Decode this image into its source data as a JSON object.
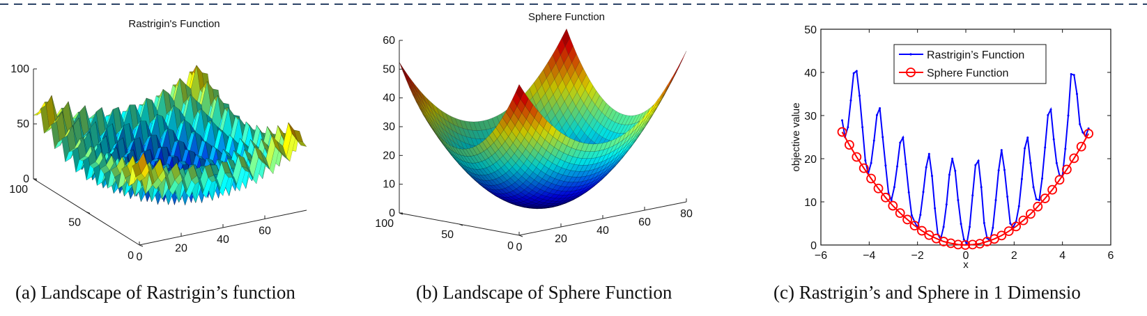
{
  "figure": {
    "captions": [
      "(a) Landscape of Rastrigin’s function",
      "(b) Landscape of Sphere Function",
      "(c) Rastrigin’s and Sphere in 1 Dimensio"
    ]
  },
  "chart_data": [
    {
      "type": "surface3d",
      "title": "Rastrigin's Function",
      "function": "rastrigin",
      "x_ticks": [
        "0",
        "20",
        "40",
        "60"
      ],
      "y_ticks": [
        "0",
        "50",
        "100"
      ],
      "z_ticks": [
        "0",
        "50",
        "100"
      ],
      "xlim": [
        0,
        80
      ],
      "ylim": [
        0,
        100
      ],
      "zlim": [
        0,
        100
      ],
      "grid": false
    },
    {
      "type": "surface3d",
      "title": "Sphere Function",
      "function": "sphere",
      "x_ticks": [
        "0",
        "20",
        "40",
        "60",
        "80"
      ],
      "y_ticks": [
        "0",
        "50",
        "100"
      ],
      "z_ticks": [
        "0",
        "10",
        "20",
        "30",
        "40",
        "50",
        "60"
      ],
      "xlim": [
        0,
        80
      ],
      "ylim": [
        0,
        100
      ],
      "zlim": [
        0,
        60
      ],
      "grid": false
    },
    {
      "type": "line",
      "title": "",
      "xlabel": "x",
      "ylabel": "objective value",
      "xlim": [
        -6,
        6
      ],
      "ylim": [
        0,
        50
      ],
      "x_ticks": [
        "−6",
        "−4",
        "−2",
        "0",
        "2",
        "4",
        "6"
      ],
      "y_ticks": [
        "0",
        "10",
        "20",
        "30",
        "40",
        "50"
      ],
      "legend_position": "top-center",
      "grid": false,
      "series": [
        {
          "name": "Rastrigin’s Function",
          "color": "#0000ff",
          "marker": "dot",
          "x": [
            -5.12,
            -5.0,
            -4.88,
            -4.76,
            -4.64,
            -4.52,
            -4.4,
            -4.28,
            -4.16,
            -4.04,
            -3.92,
            -3.8,
            -3.68,
            -3.56,
            -3.44,
            -3.32,
            -3.2,
            -3.08,
            -2.96,
            -2.84,
            -2.72,
            -2.6,
            -2.48,
            -2.36,
            -2.24,
            -2.12,
            -2.0,
            -1.88,
            -1.76,
            -1.64,
            -1.52,
            -1.4,
            -1.28,
            -1.16,
            -1.04,
            -0.92,
            -0.8,
            -0.68,
            -0.56,
            -0.44,
            -0.32,
            -0.2,
            -0.08,
            0.04,
            0.16,
            0.28,
            0.4,
            0.52,
            0.64,
            0.76,
            0.88,
            1.0,
            1.12,
            1.24,
            1.36,
            1.48,
            1.6,
            1.72,
            1.84,
            1.96,
            2.08,
            2.2,
            2.32,
            2.44,
            2.56,
            2.68,
            2.8,
            2.92,
            3.04,
            3.16,
            3.28,
            3.4,
            3.52,
            3.64,
            3.76,
            3.88,
            4.0,
            4.12,
            4.24,
            4.36,
            4.48,
            4.6,
            4.72,
            4.84,
            4.96,
            5.08
          ],
          "y": [
            28.9,
            25.0,
            27.3,
            33.5,
            39.8,
            40.3,
            34.6,
            27.3,
            19.6,
            16.5,
            19.0,
            24.2,
            30.1,
            31.7,
            25.0,
            18.4,
            12.0,
            10.4,
            13.4,
            18.2,
            23.7,
            24.9,
            18.7,
            12.2,
            6.9,
            5.4,
            4.0,
            7.0,
            12.3,
            18.0,
            21.1,
            16.0,
            8.5,
            2.5,
            1.3,
            4.2,
            9.4,
            16.3,
            20.0,
            17.2,
            10.4,
            4.9,
            1.3,
            0.3,
            4.2,
            11.5,
            18.5,
            19.5,
            13.4,
            5.1,
            1.6,
            1.0,
            4.0,
            10.4,
            17.3,
            22.0,
            17.4,
            11.2,
            5.0,
            4.1,
            5.4,
            9.0,
            15.3,
            22.4,
            24.9,
            19.0,
            13.4,
            10.6,
            10.4,
            15.4,
            22.6,
            30.1,
            31.4,
            24.5,
            19.0,
            16.1,
            16.0,
            22.3,
            30.0,
            39.6,
            39.4,
            35.0,
            28.0,
            26.1,
            25.2,
            27.0
          ]
        },
        {
          "name": "Sphere Function",
          "color": "#ff0000",
          "marker": "circle",
          "x": [
            -5.12,
            -4.82,
            -4.52,
            -4.22,
            -3.92,
            -3.62,
            -3.32,
            -3.02,
            -2.72,
            -2.42,
            -2.12,
            -1.82,
            -1.52,
            -1.22,
            -0.92,
            -0.62,
            -0.32,
            -0.02,
            0.28,
            0.58,
            0.88,
            1.18,
            1.48,
            1.78,
            2.08,
            2.38,
            2.68,
            2.98,
            3.28,
            3.58,
            3.88,
            4.18,
            4.48,
            4.78,
            5.08
          ],
          "y": [
            26.2,
            23.2,
            20.4,
            17.8,
            15.4,
            13.1,
            11.0,
            9.1,
            7.4,
            5.9,
            4.5,
            3.3,
            2.3,
            1.5,
            0.8,
            0.4,
            0.1,
            0.0,
            0.1,
            0.3,
            0.8,
            1.4,
            2.2,
            3.2,
            4.3,
            5.7,
            7.2,
            8.9,
            10.8,
            12.8,
            15.1,
            17.5,
            20.1,
            22.8,
            25.8
          ]
        }
      ]
    }
  ]
}
